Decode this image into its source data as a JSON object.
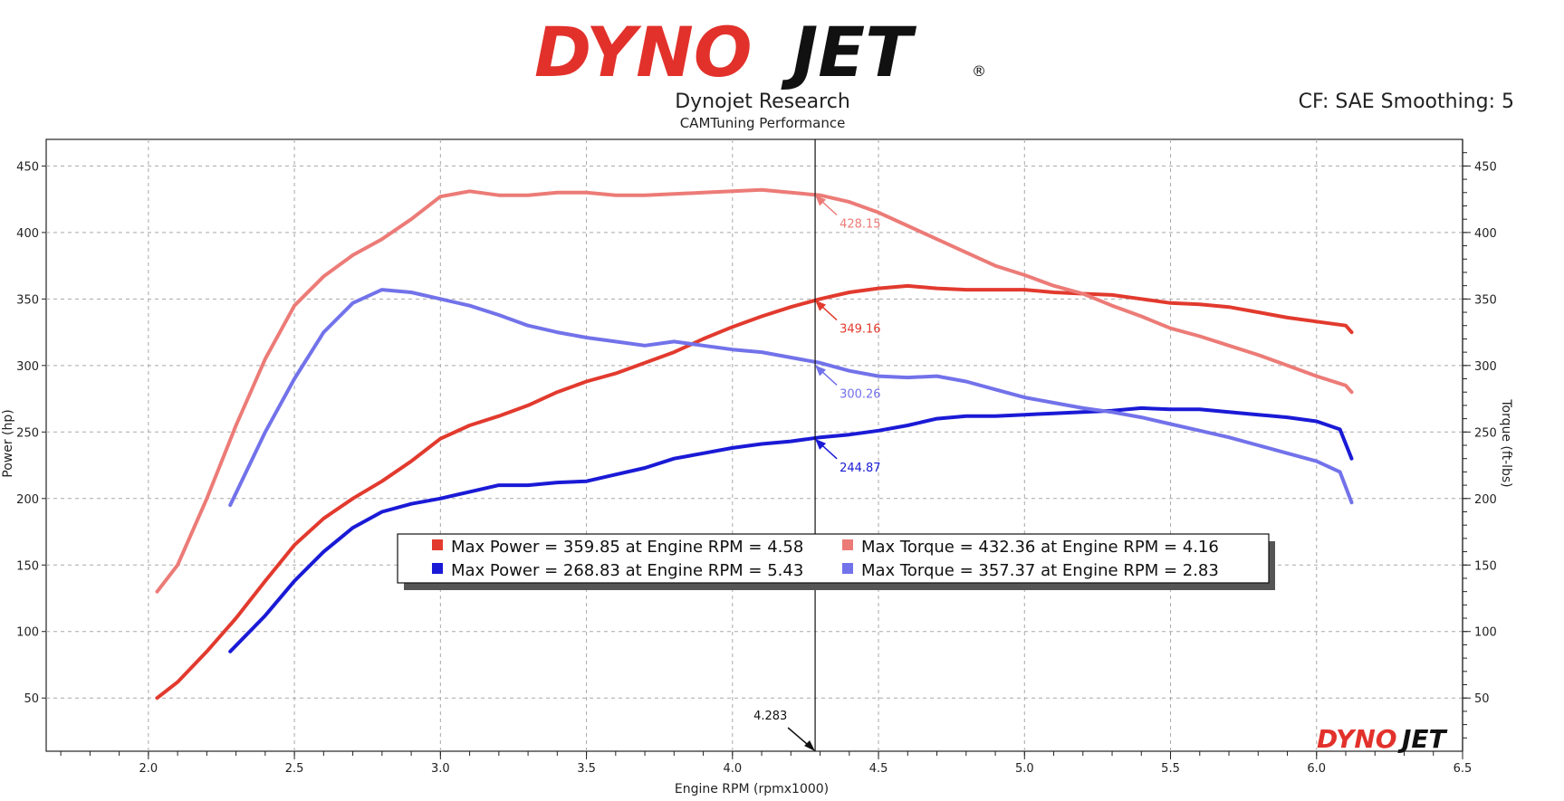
{
  "logo": {
    "part1": "DYNO",
    "part2": "JET",
    "reg": "®"
  },
  "header": {
    "title": "Dynojet Research",
    "subtitle": "CAMTuning Performance",
    "correction": "CF: SAE Smoothing: 5"
  },
  "colors": {
    "run1_power": "#e23a2e",
    "run1_torque": "#ec7b77",
    "run2_power": "#1a1ad6",
    "run2_torque": "#7272ea",
    "grid": "#a8a8a8"
  },
  "chart_data": {
    "type": "line",
    "title": "Dynojet Research",
    "subtitle": "CAMTuning Performance",
    "xlabel": "Engine RPM (rpmx1000)",
    "ylabel": "Power (hp)",
    "ylabel_right": "Torque (ft-lbs)",
    "xlim": [
      1.65,
      6.5
    ],
    "ylim": [
      10,
      470
    ],
    "x_ticks": [
      "2.0",
      "2.5",
      "3.0",
      "3.5",
      "4.0",
      "4.5",
      "5.0",
      "5.5",
      "6.0",
      "6.5"
    ],
    "y_ticks": [
      "50",
      "100",
      "150",
      "200",
      "250",
      "300",
      "350",
      "400",
      "450"
    ],
    "grid": true,
    "cursor": {
      "x": 4.283,
      "label": "4.283"
    },
    "series": [
      {
        "name": "Max Power = 359.85 at Engine RPM = 4.58",
        "kind": "power",
        "color_key": "run1_power",
        "x": [
          2.03,
          2.1,
          2.2,
          2.3,
          2.4,
          2.5,
          2.6,
          2.7,
          2.8,
          2.9,
          3.0,
          3.1,
          3.2,
          3.3,
          3.4,
          3.5,
          3.6,
          3.7,
          3.8,
          3.9,
          4.0,
          4.1,
          4.2,
          4.3,
          4.4,
          4.5,
          4.6,
          4.7,
          4.8,
          4.9,
          5.0,
          5.1,
          5.2,
          5.3,
          5.4,
          5.5,
          5.6,
          5.7,
          5.8,
          5.9,
          6.0,
          6.1,
          6.12
        ],
        "values": [
          50,
          62,
          85,
          110,
          138,
          165,
          185,
          200,
          213,
          228,
          245,
          255,
          262,
          270,
          280,
          288,
          294,
          302,
          310,
          320,
          329,
          337,
          344,
          350,
          355,
          358,
          359.85,
          358,
          357,
          357,
          357,
          355,
          354,
          353,
          350,
          347,
          346,
          344,
          340,
          336,
          333,
          330,
          325
        ]
      },
      {
        "name": "Max Torque = 432.36 at Engine RPM = 4.16",
        "kind": "torque",
        "color_key": "run1_torque",
        "x": [
          2.03,
          2.1,
          2.2,
          2.3,
          2.4,
          2.5,
          2.6,
          2.7,
          2.8,
          2.9,
          3.0,
          3.1,
          3.2,
          3.3,
          3.4,
          3.5,
          3.6,
          3.7,
          3.8,
          3.9,
          4.0,
          4.1,
          4.2,
          4.3,
          4.4,
          4.5,
          4.6,
          4.7,
          4.8,
          4.9,
          5.0,
          5.1,
          5.2,
          5.3,
          5.4,
          5.5,
          5.6,
          5.7,
          5.8,
          5.9,
          6.0,
          6.1,
          6.12
        ],
        "values": [
          130,
          150,
          200,
          255,
          305,
          345,
          367,
          383,
          395,
          410,
          427,
          431,
          428,
          428,
          430,
          430,
          428,
          428,
          429,
          430,
          431,
          432,
          430,
          428,
          423,
          415,
          405,
          395,
          385,
          375,
          368,
          360,
          354,
          345,
          337,
          328,
          322,
          315,
          308,
          300,
          292,
          285,
          280
        ]
      },
      {
        "name": "Max Power = 268.83 at Engine RPM = 5.43",
        "kind": "power",
        "color_key": "run2_power",
        "x": [
          2.28,
          2.4,
          2.5,
          2.6,
          2.7,
          2.8,
          2.9,
          3.0,
          3.1,
          3.2,
          3.3,
          3.4,
          3.5,
          3.6,
          3.7,
          3.8,
          3.9,
          4.0,
          4.1,
          4.2,
          4.3,
          4.4,
          4.5,
          4.6,
          4.7,
          4.8,
          4.9,
          5.0,
          5.1,
          5.2,
          5.3,
          5.4,
          5.5,
          5.6,
          5.7,
          5.8,
          5.9,
          6.0,
          6.08,
          6.12
        ],
        "values": [
          85,
          112,
          138,
          160,
          178,
          190,
          196,
          200,
          205,
          210,
          210,
          212,
          213,
          218,
          223,
          230,
          234,
          238,
          241,
          243,
          246,
          248,
          251,
          255,
          260,
          262,
          262,
          263,
          264,
          265,
          266,
          268,
          267,
          267,
          265,
          263,
          261,
          258,
          252,
          230
        ]
      },
      {
        "name": "Max Torque = 357.37 at Engine RPM = 2.83",
        "kind": "torque",
        "color_key": "run2_torque",
        "x": [
          2.28,
          2.4,
          2.5,
          2.6,
          2.7,
          2.8,
          2.9,
          3.0,
          3.1,
          3.2,
          3.3,
          3.4,
          3.5,
          3.6,
          3.7,
          3.8,
          3.9,
          4.0,
          4.1,
          4.2,
          4.3,
          4.4,
          4.5,
          4.6,
          4.7,
          4.8,
          4.9,
          5.0,
          5.1,
          5.2,
          5.3,
          5.4,
          5.5,
          5.6,
          5.7,
          5.8,
          5.9,
          6.0,
          6.08,
          6.12
        ],
        "values": [
          195,
          250,
          290,
          325,
          347,
          357,
          355,
          350,
          345,
          338,
          330,
          325,
          321,
          318,
          315,
          318,
          315,
          312,
          310,
          306,
          302,
          296,
          292,
          291,
          292,
          288,
          282,
          276,
          272,
          268,
          265,
          261,
          256,
          251,
          246,
          240,
          234,
          228,
          220,
          197
        ]
      }
    ],
    "callouts": [
      {
        "label": "428.15",
        "value": 428.15,
        "color_key": "run1_torque"
      },
      {
        "label": "349.16",
        "value": 349.16,
        "color_key": "run1_power"
      },
      {
        "label": "300.26",
        "value": 300.26,
        "color_key": "run2_torque"
      },
      {
        "label": "244.87",
        "value": 244.87,
        "color_key": "run2_power"
      }
    ]
  }
}
